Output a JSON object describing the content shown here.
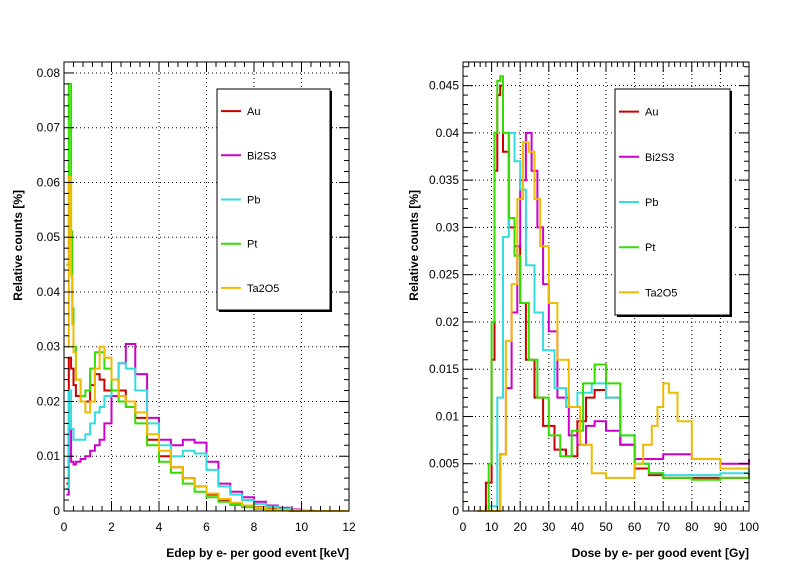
{
  "chart_data": [
    {
      "type": "line",
      "xlabel": "Edep by e- per good event [keV]",
      "ylabel": "Relative counts [%]",
      "xlim": [
        0,
        12
      ],
      "ylim": [
        0,
        0.082
      ],
      "xticks": [
        "0",
        "2",
        "4",
        "6",
        "8",
        "10",
        "12"
      ],
      "yticks": [
        "0",
        "0.01",
        "0.02",
        "0.03",
        "0.04",
        "0.05",
        "0.06",
        "0.07",
        "0.08"
      ],
      "grid": true,
      "legend_position": "top-right",
      "series": [
        {
          "name": "Au",
          "color": "#cc0000",
          "x": [
            0.1,
            0.2,
            0.3,
            0.4,
            0.5,
            0.7,
            0.9,
            1.1,
            1.3,
            1.5,
            1.7,
            2.0,
            2.3,
            2.6,
            3.0,
            3.5,
            4.0,
            4.5,
            5.0,
            5.5,
            6.0,
            6.5,
            7.0,
            7.5,
            8.0,
            8.5,
            9.0,
            9.5,
            10.0,
            10.5
          ],
          "y": [
            0.005,
            0.028,
            0.026,
            0.023,
            0.021,
            0.02,
            0.02,
            0.023,
            0.025,
            0.024,
            0.022,
            0.021,
            0.022,
            0.02,
            0.017,
            0.013,
            0.01,
            0.008,
            0.006,
            0.0045,
            0.003,
            0.002,
            0.0014,
            0.001,
            0.0007,
            0.0004,
            0.0002,
            0.0001,
            0.0001,
            0.0
          ]
        },
        {
          "name": "Bi2S3",
          "color": "#cc00cc",
          "x": [
            0.1,
            0.2,
            0.3,
            0.4,
            0.5,
            0.7,
            0.9,
            1.1,
            1.3,
            1.5,
            1.7,
            2.0,
            2.3,
            2.6,
            3.0,
            3.5,
            4.0,
            4.5,
            5.0,
            5.5,
            6.0,
            6.5,
            7.0,
            7.5,
            8.0,
            8.5,
            9.0,
            9.5,
            10.0,
            10.5
          ],
          "y": [
            0.003,
            0.015,
            0.009,
            0.0085,
            0.009,
            0.0095,
            0.01,
            0.011,
            0.012,
            0.013,
            0.016,
            0.021,
            0.027,
            0.0305,
            0.025,
            0.017,
            0.013,
            0.012,
            0.013,
            0.0125,
            0.009,
            0.005,
            0.0035,
            0.0025,
            0.0017,
            0.001,
            0.0006,
            0.0003,
            0.0001,
            0.0
          ]
        },
        {
          "name": "Pb",
          "color": "#33dddd",
          "x": [
            0.1,
            0.2,
            0.3,
            0.4,
            0.5,
            0.7,
            0.9,
            1.1,
            1.3,
            1.5,
            1.7,
            2.0,
            2.3,
            2.6,
            3.0,
            3.5,
            4.0,
            4.5,
            5.0,
            5.5,
            6.0,
            6.5,
            7.0,
            7.5,
            8.0,
            8.5,
            9.0,
            9.5,
            10.0,
            10.5
          ],
          "y": [
            0.004,
            0.022,
            0.015,
            0.013,
            0.013,
            0.013,
            0.014,
            0.016,
            0.018,
            0.019,
            0.021,
            0.024,
            0.027,
            0.026,
            0.022,
            0.016,
            0.012,
            0.01,
            0.011,
            0.0105,
            0.0075,
            0.0045,
            0.003,
            0.002,
            0.0013,
            0.0008,
            0.0004,
            0.0002,
            0.0001,
            0.0
          ]
        },
        {
          "name": "Pt",
          "color": "#33dd00",
          "x": [
            0.1,
            0.2,
            0.3,
            0.35,
            0.4,
            0.5,
            0.7,
            0.9,
            1.1,
            1.3,
            1.5,
            1.7,
            2.0,
            2.3,
            2.6,
            3.0,
            3.5,
            4.0,
            4.5,
            5.0,
            5.5,
            6.0,
            6.5,
            7.0,
            7.5,
            8.0,
            8.5,
            9.0,
            9.5,
            10.0
          ],
          "y": [
            0.045,
            0.078,
            0.051,
            0.037,
            0.03,
            0.024,
            0.021,
            0.022,
            0.026,
            0.029,
            0.029,
            0.026,
            0.022,
            0.02,
            0.019,
            0.016,
            0.012,
            0.009,
            0.007,
            0.005,
            0.0035,
            0.0025,
            0.0017,
            0.0011,
            0.0007,
            0.0004,
            0.0002,
            0.0001,
            0.0,
            0.0
          ]
        },
        {
          "name": "Ta2O5",
          "color": "#eebb00",
          "x": [
            0.1,
            0.2,
            0.3,
            0.35,
            0.4,
            0.5,
            0.7,
            0.9,
            1.1,
            1.3,
            1.5,
            1.7,
            2.0,
            2.3,
            2.6,
            3.0,
            3.5,
            4.0,
            4.5,
            5.0,
            5.5,
            6.0,
            6.5,
            7.0,
            7.5,
            8.0,
            8.5,
            9.0,
            9.5,
            10.0
          ],
          "y": [
            0.03,
            0.061,
            0.043,
            0.034,
            0.029,
            0.024,
            0.02,
            0.018,
            0.02,
            0.026,
            0.03,
            0.028,
            0.024,
            0.021,
            0.02,
            0.018,
            0.014,
            0.011,
            0.008,
            0.006,
            0.0045,
            0.0032,
            0.0022,
            0.0015,
            0.001,
            0.0006,
            0.0003,
            0.0002,
            0.0001,
            0.0
          ]
        }
      ]
    },
    {
      "type": "line",
      "xlabel": "Dose by e- per good event [Gy]",
      "ylabel": "Relative counts [%]",
      "xlim": [
        0,
        100
      ],
      "ylim": [
        0,
        0.0475
      ],
      "xticks": [
        "0",
        "10",
        "20",
        "30",
        "40",
        "50",
        "60",
        "70",
        "80",
        "90",
        "100"
      ],
      "yticks": [
        "0",
        "0.005",
        "0.01",
        "0.015",
        "0.02",
        "0.025",
        "0.03",
        "0.035",
        "0.04",
        "0.045"
      ],
      "grid": true,
      "legend_position": "top-right",
      "series": [
        {
          "name": "Au",
          "color": "#cc0000",
          "x": [
            5,
            8,
            10,
            11,
            12,
            13,
            14,
            16,
            18,
            20,
            22,
            25,
            28,
            32,
            36,
            40,
            43,
            46,
            50,
            55,
            60,
            65,
            70,
            80,
            90,
            100
          ],
          "y": [
            0.0,
            0.003,
            0.016,
            0.036,
            0.044,
            0.045,
            0.038,
            0.03,
            0.028,
            0.022,
            0.016,
            0.012,
            0.009,
            0.0065,
            0.0058,
            0.0095,
            0.012,
            0.0128,
            0.012,
            0.007,
            0.0045,
            0.0038,
            0.0035,
            0.0035,
            0.0035,
            0.004
          ]
        },
        {
          "name": "Bi2S3",
          "color": "#cc00cc",
          "x": [
            5,
            10,
            13,
            15,
            17,
            19,
            20,
            22,
            24,
            26,
            28,
            30,
            33,
            37,
            40,
            43,
            46,
            50,
            55,
            60,
            65,
            70,
            80,
            90,
            100
          ],
          "y": [
            0.0,
            0.0,
            0.006,
            0.013,
            0.021,
            0.028,
            0.035,
            0.04,
            0.036,
            0.03,
            0.024,
            0.019,
            0.012,
            0.008,
            0.007,
            0.009,
            0.0095,
            0.0085,
            0.007,
            0.0055,
            0.0055,
            0.006,
            0.0055,
            0.005,
            0.0055
          ]
        },
        {
          "name": "Pb",
          "color": "#33dddd",
          "x": [
            5,
            9,
            12,
            14,
            16,
            18,
            20,
            22,
            25,
            28,
            32,
            36,
            40,
            45,
            50,
            55,
            60,
            65,
            70,
            80,
            90,
            100
          ],
          "y": [
            0.0,
            0.0005,
            0.012,
            0.029,
            0.04,
            0.037,
            0.034,
            0.026,
            0.021,
            0.017,
            0.013,
            0.011,
            0.0125,
            0.0135,
            0.012,
            0.008,
            0.005,
            0.004,
            0.0038,
            0.0038,
            0.004,
            0.0045
          ]
        },
        {
          "name": "Pt",
          "color": "#33dd00",
          "x": [
            5,
            8,
            9,
            10,
            11,
            12,
            13,
            14,
            16,
            18,
            20,
            23,
            26,
            30,
            34,
            38,
            42,
            46,
            50,
            55,
            60,
            65,
            70,
            80,
            90,
            100
          ],
          "y": [
            0.0,
            0.0,
            0.005,
            0.02,
            0.04,
            0.0455,
            0.046,
            0.04,
            0.031,
            0.027,
            0.022,
            0.016,
            0.012,
            0.008,
            0.0058,
            0.0085,
            0.0135,
            0.0155,
            0.0135,
            0.008,
            0.005,
            0.004,
            0.0035,
            0.0033,
            0.0035,
            0.0038
          ]
        },
        {
          "name": "Ta2O5",
          "color": "#eebb00",
          "x": [
            5,
            10,
            13,
            15,
            17,
            19,
            21,
            23,
            25,
            27,
            30,
            33,
            37,
            41,
            45,
            50,
            55,
            60,
            63,
            66,
            68,
            70,
            72,
            75,
            80,
            90,
            100
          ],
          "y": [
            0.0,
            0.0,
            0.006,
            0.018,
            0.024,
            0.033,
            0.039,
            0.038,
            0.033,
            0.028,
            0.022,
            0.016,
            0.011,
            0.007,
            0.004,
            0.0035,
            0.0035,
            0.005,
            0.007,
            0.009,
            0.011,
            0.0135,
            0.0125,
            0.0095,
            0.0055,
            0.0045,
            0.0045
          ]
        }
      ]
    }
  ]
}
